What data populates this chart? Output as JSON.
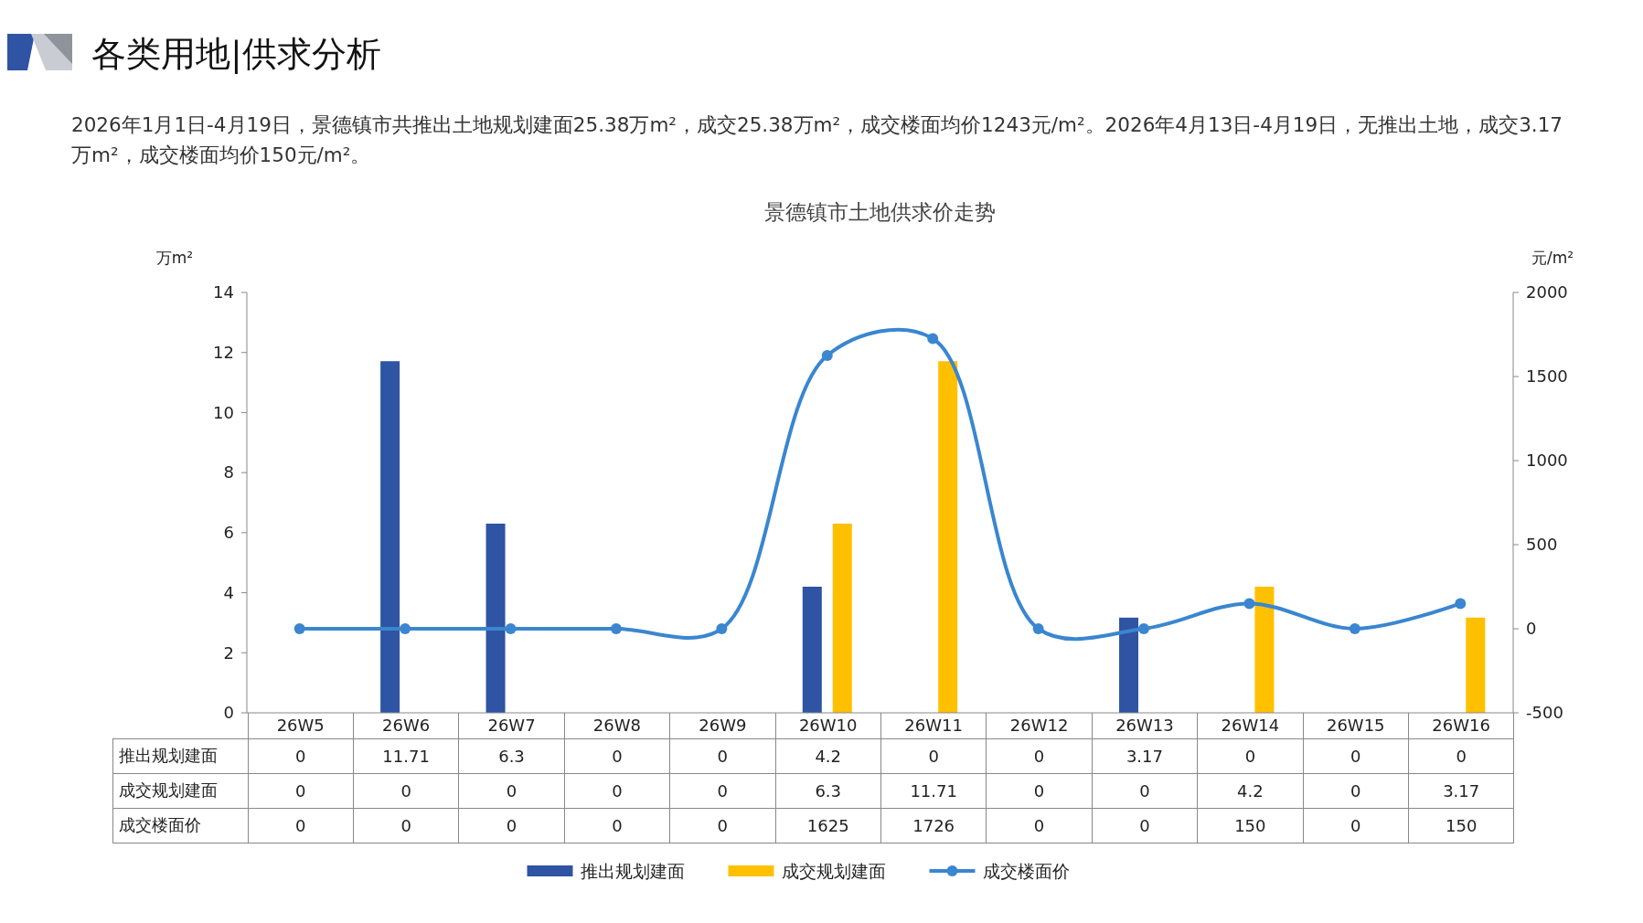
{
  "chart_data": {
    "type": "bar",
    "title": "景德镇市土地供求价走势",
    "annotations": [
      "各类用地|供求分析",
      "2026年1月1日-4月19日，景德镇市共推出土地规划建面25.38万m²，成交25.38万m²，成交楼面均价1243元/m²。2026年4月13日-4月19日，无推出土地，成交3.17万m²，成交楼面均价150元/m²。"
    ],
    "ylabel": "万m²",
    "y2label": "元/m²",
    "categories": [
      "26W5",
      "26W6",
      "26W7",
      "26W8",
      "26W9",
      "26W10",
      "26W11",
      "26W12",
      "26W13",
      "26W14",
      "26W15",
      "26W16"
    ],
    "series": [
      {
        "name": "推出规划建面",
        "color": "#2e54a3",
        "values": [
          0,
          11.71,
          6.3,
          0,
          0,
          4.2,
          0,
          0,
          3.17,
          0,
          0,
          0
        ]
      },
      {
        "name": "成交规划建面",
        "color": "#ffc000",
        "values": [
          0,
          0,
          0,
          0,
          0,
          6.3,
          11.71,
          0,
          0,
          4.2,
          0,
          3.17
        ]
      },
      {
        "name": "成交楼面价",
        "type": "line",
        "axis": "y2",
        "color": "#3a86d0",
        "values": [
          0,
          0,
          0,
          0,
          0,
          1625,
          1726,
          0,
          0,
          150,
          0,
          150
        ]
      }
    ],
    "ylim": [
      0,
      14
    ],
    "yticks": [
      0,
      2,
      4,
      6,
      8,
      10,
      12,
      14
    ],
    "y2lim": [
      -500,
      2000
    ],
    "y2ticks": [
      -500,
      0,
      500,
      1000,
      1500,
      2000
    ],
    "data_labels": true,
    "legend": "bottom",
    "marker": "circle",
    "line_style": "solid"
  }
}
